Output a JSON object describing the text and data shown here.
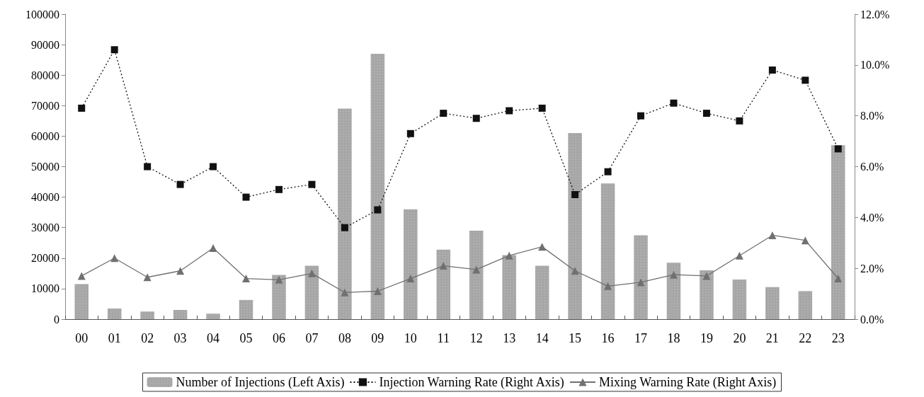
{
  "chart_data": {
    "type": "bar",
    "categories": [
      "00",
      "01",
      "02",
      "03",
      "04",
      "05",
      "06",
      "07",
      "08",
      "09",
      "10",
      "11",
      "12",
      "13",
      "14",
      "15",
      "16",
      "17",
      "18",
      "19",
      "20",
      "21",
      "22",
      "23"
    ],
    "series": [
      {
        "name": "Number of Injections (Left Axis)",
        "color": "#a6a6a6",
        "values": [
          11500,
          3500,
          2500,
          3000,
          1800,
          6300,
          14500,
          17500,
          69000,
          87000,
          36000,
          22800,
          29000,
          21000,
          17500,
          61000,
          44500,
          27500,
          18500,
          16000,
          13000,
          10500,
          9200,
          57000
        ]
      },
      {
        "name": "Injection Warning Rate (Right Axis)",
        "type": "line",
        "axis": "y2",
        "color": "#111111",
        "marker": "square",
        "line_style": "dotted",
        "values": [
          8.3,
          10.6,
          6.0,
          5.3,
          6.0,
          4.8,
          5.1,
          5.3,
          3.6,
          4.3,
          7.3,
          8.1,
          7.9,
          8.2,
          8.3,
          4.9,
          5.8,
          8.0,
          8.5,
          8.1,
          7.8,
          9.8,
          9.4,
          6.7
        ]
      },
      {
        "name": "Mixing Warning Rate (Right Axis)",
        "type": "line",
        "axis": "y2",
        "color": "#707070",
        "marker": "triangle",
        "line_style": "solid",
        "values": [
          1.7,
          2.4,
          1.65,
          1.9,
          2.8,
          1.6,
          1.55,
          1.8,
          1.05,
          1.1,
          1.6,
          2.1,
          1.95,
          2.5,
          2.85,
          1.9,
          1.3,
          1.45,
          1.75,
          1.7,
          2.5,
          3.3,
          3.1,
          1.6
        ]
      }
    ],
    "ylim": [
      0,
      100000
    ],
    "yticks": [
      0,
      10000,
      20000,
      30000,
      40000,
      50000,
      60000,
      70000,
      80000,
      90000,
      100000
    ],
    "y2lim": [
      0,
      12
    ],
    "y2ticks": [
      {
        "value": 0,
        "label": "0.0%"
      },
      {
        "value": 2,
        "label": "2.0%"
      },
      {
        "value": 4,
        "label": "4.0%"
      },
      {
        "value": 6,
        "label": "6.0%"
      },
      {
        "value": 8,
        "label": "8.0%"
      },
      {
        "value": 10,
        "label": "10.0%"
      },
      {
        "value": 12,
        "label": "12.0%"
      }
    ],
    "grid": false,
    "legend": "bottom"
  }
}
